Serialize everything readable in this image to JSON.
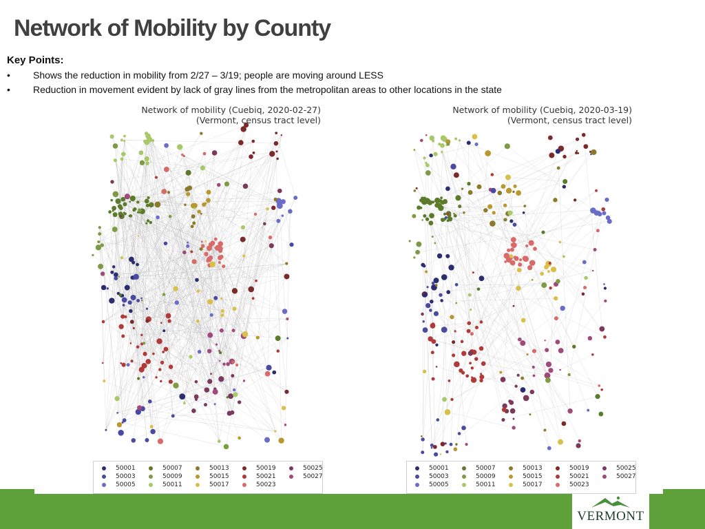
{
  "title": "Network of Mobility by County",
  "key_points": {
    "heading": "Key Points:",
    "bullet_symbol": "•",
    "items": [
      "Shows the reduction in mobility from 2/27 – 3/19; people are moving around LESS",
      "Reduction in movement evident by lack of gray lines from the metropolitan areas to other locations in the state"
    ]
  },
  "maps": [
    {
      "title_line1": "Network of mobility (Cuebiq, 2020-02-27)",
      "title_line2": "(Vermont, census tract level)"
    },
    {
      "title_line1": "Network of mobility (Cuebiq, 2020-03-19)",
      "title_line2": "(Vermont, census tract level)"
    }
  ],
  "legend": [
    {
      "code": "50001",
      "color": "#2b2d6e"
    },
    {
      "code": "50003",
      "color": "#4a4aa0"
    },
    {
      "code": "50005",
      "color": "#6b6bc8"
    },
    {
      "code": "50007",
      "color": "#5b7a2a"
    },
    {
      "code": "50009",
      "color": "#7f9a45"
    },
    {
      "code": "50011",
      "color": "#a8c86a"
    },
    {
      "code": "50013",
      "color": "#8a7a2a"
    },
    {
      "code": "50015",
      "color": "#b8982f"
    },
    {
      "code": "50017",
      "color": "#d8c04a"
    },
    {
      "code": "50019",
      "color": "#7a2a2a"
    },
    {
      "code": "50021",
      "color": "#b03a3a"
    },
    {
      "code": "50023",
      "color": "#d86a6a"
    },
    {
      "code": "50025",
      "color": "#7a3a5a"
    },
    {
      "code": "50027",
      "color": "#a04a7a"
    }
  ],
  "logo": {
    "text": "VERMONT"
  },
  "colors": {
    "green": "#5ea13b",
    "title": "#404040"
  }
}
